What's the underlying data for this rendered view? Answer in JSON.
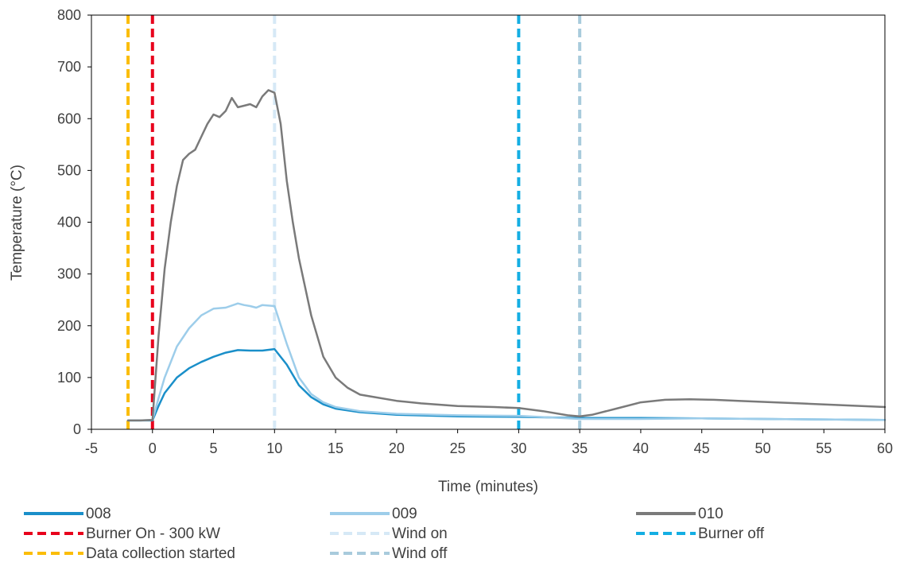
{
  "chart_data": {
    "type": "line",
    "xlabel": "Time (minutes)",
    "ylabel": "Temperature (°C)",
    "xlim": [
      -5,
      60
    ],
    "ylim": [
      0,
      800
    ],
    "x_ticks": [
      -5,
      0,
      5,
      10,
      15,
      20,
      25,
      30,
      35,
      40,
      45,
      50,
      55,
      60
    ],
    "y_ticks": [
      0,
      100,
      200,
      300,
      400,
      500,
      600,
      700,
      800
    ],
    "grid": false,
    "legend_position": "bottom",
    "series": [
      {
        "name": "008",
        "color": "#1a8fc9",
        "style": "solid",
        "points": [
          [
            -2,
            17
          ],
          [
            -1,
            17
          ],
          [
            0,
            17
          ],
          [
            0.5,
            45
          ],
          [
            1,
            70
          ],
          [
            2,
            100
          ],
          [
            3,
            118
          ],
          [
            4,
            130
          ],
          [
            5,
            140
          ],
          [
            6,
            148
          ],
          [
            7,
            153
          ],
          [
            8,
            152
          ],
          [
            9,
            152
          ],
          [
            10,
            155
          ],
          [
            11,
            125
          ],
          [
            12,
            85
          ],
          [
            13,
            62
          ],
          [
            14,
            48
          ],
          [
            15,
            40
          ],
          [
            17,
            33
          ],
          [
            20,
            28
          ],
          [
            25,
            25
          ],
          [
            30,
            24
          ],
          [
            35,
            22
          ],
          [
            40,
            22
          ],
          [
            45,
            21
          ],
          [
            50,
            20
          ],
          [
            55,
            19
          ],
          [
            60,
            18
          ]
        ]
      },
      {
        "name": "009",
        "color": "#9dcdea",
        "style": "solid",
        "points": [
          [
            -2,
            17
          ],
          [
            -1,
            17
          ],
          [
            0,
            18
          ],
          [
            0.5,
            60
          ],
          [
            1,
            100
          ],
          [
            2,
            160
          ],
          [
            3,
            195
          ],
          [
            4,
            220
          ],
          [
            5,
            233
          ],
          [
            6,
            235
          ],
          [
            7,
            243
          ],
          [
            7.5,
            240
          ],
          [
            8,
            238
          ],
          [
            8.5,
            235
          ],
          [
            9,
            240
          ],
          [
            10,
            238
          ],
          [
            11,
            165
          ],
          [
            12,
            100
          ],
          [
            13,
            68
          ],
          [
            14,
            52
          ],
          [
            15,
            43
          ],
          [
            17,
            35
          ],
          [
            20,
            30
          ],
          [
            25,
            27
          ],
          [
            30,
            26
          ],
          [
            35,
            20
          ],
          [
            40,
            20
          ],
          [
            45,
            21
          ],
          [
            50,
            20
          ],
          [
            55,
            19
          ],
          [
            60,
            18
          ]
        ]
      },
      {
        "name": "010",
        "color": "#7a7a7a",
        "style": "solid",
        "points": [
          [
            -2,
            17
          ],
          [
            -1,
            17
          ],
          [
            0,
            18
          ],
          [
            0.5,
            180
          ],
          [
            1,
            310
          ],
          [
            1.5,
            400
          ],
          [
            2,
            470
          ],
          [
            2.5,
            520
          ],
          [
            3,
            532
          ],
          [
            3.5,
            540
          ],
          [
            4,
            565
          ],
          [
            4.5,
            590
          ],
          [
            5,
            608
          ],
          [
            5.5,
            603
          ],
          [
            6,
            615
          ],
          [
            6.5,
            640
          ],
          [
            7,
            622
          ],
          [
            7.5,
            625
          ],
          [
            8,
            628
          ],
          [
            8.5,
            622
          ],
          [
            9,
            643
          ],
          [
            9.5,
            655
          ],
          [
            10,
            650
          ],
          [
            10.5,
            590
          ],
          [
            11,
            480
          ],
          [
            11.5,
            400
          ],
          [
            12,
            330
          ],
          [
            13,
            220
          ],
          [
            14,
            140
          ],
          [
            15,
            100
          ],
          [
            16,
            80
          ],
          [
            17,
            67
          ],
          [
            18,
            63
          ],
          [
            20,
            55
          ],
          [
            22,
            50
          ],
          [
            25,
            45
          ],
          [
            28,
            43
          ],
          [
            30,
            41
          ],
          [
            32,
            35
          ],
          [
            34,
            27
          ],
          [
            35,
            25
          ],
          [
            36,
            28
          ],
          [
            38,
            40
          ],
          [
            40,
            52
          ],
          [
            42,
            57
          ],
          [
            44,
            58
          ],
          [
            46,
            57
          ],
          [
            48,
            55
          ],
          [
            50,
            53
          ],
          [
            53,
            50
          ],
          [
            56,
            47
          ],
          [
            60,
            43
          ]
        ]
      }
    ],
    "vertical_markers": [
      {
        "name": "Burner On - 300 kW",
        "x": 0,
        "color": "#e8001c",
        "style": "dashed"
      },
      {
        "name": "Wind on",
        "x": 10,
        "color": "#d6e9f6",
        "style": "dashed"
      },
      {
        "name": "Burner off",
        "x": 30,
        "color": "#14aee3",
        "style": "dashed"
      },
      {
        "name": "Data collection started",
        "x": -2,
        "color": "#fbbd08",
        "style": "dashed"
      },
      {
        "name": "Wind off",
        "x": 35,
        "color": "#a8cbdc",
        "style": "dashed"
      }
    ],
    "legend": [
      {
        "label": "008",
        "color": "#1a8fc9",
        "style": "solid"
      },
      {
        "label": "009",
        "color": "#9dcdea",
        "style": "solid"
      },
      {
        "label": "010",
        "color": "#7a7a7a",
        "style": "solid"
      },
      {
        "label": "Burner On - 300 kW",
        "color": "#e8001c",
        "style": "dashed"
      },
      {
        "label": "Wind on",
        "color": "#d6e9f6",
        "style": "dashed"
      },
      {
        "label": "Burner off",
        "color": "#14aee3",
        "style": "dashed"
      },
      {
        "label": "Data collection started",
        "color": "#fbbd08",
        "style": "dashed"
      },
      {
        "label": "Wind off",
        "color": "#a8cbdc",
        "style": "dashed"
      }
    ]
  }
}
